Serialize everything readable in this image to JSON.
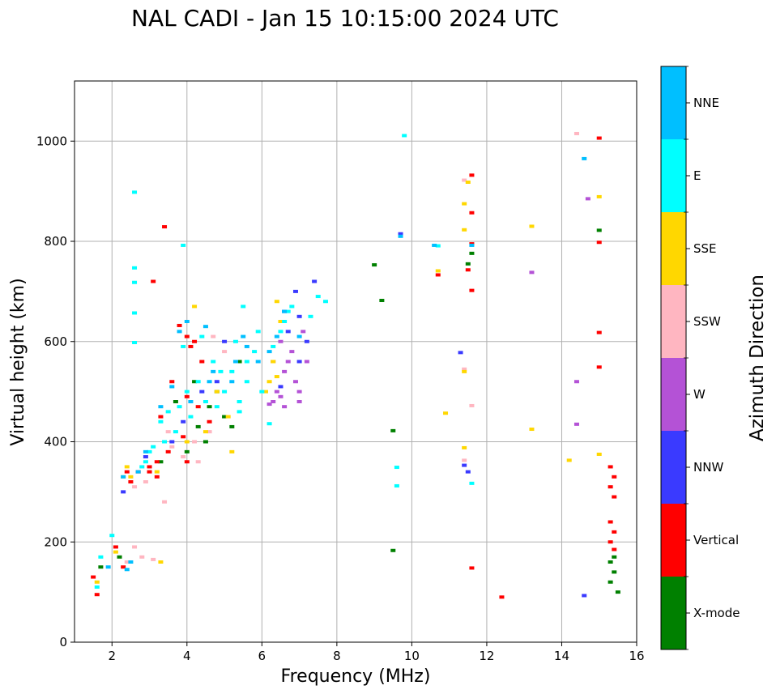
{
  "chart_data": {
    "type": "scatter",
    "title": "NAL CADI - Jan 15 10:15:00 2024 UTC",
    "xlabel": "Frequency (MHz)",
    "ylabel": "Virtual height (km)",
    "xlim": [
      1,
      16
    ],
    "ylim": [
      0,
      1120
    ],
    "xticks": [
      2,
      4,
      6,
      8,
      10,
      12,
      14,
      16
    ],
    "yticks": [
      0,
      200,
      400,
      600,
      800,
      1000
    ],
    "grid": true,
    "colorbar": {
      "label": "Azimuth Direction",
      "categories": [
        {
          "name": "X-mode",
          "color": "#008000"
        },
        {
          "name": "Vertical",
          "color": "#ff0000"
        },
        {
          "name": "NNW",
          "color": "#3a3aff"
        },
        {
          "name": "W",
          "color": "#b452d6"
        },
        {
          "name": "SSW",
          "color": "#ffb6c1"
        },
        {
          "name": "SSE",
          "color": "#ffd700"
        },
        {
          "name": "E",
          "color": "#00ffff"
        },
        {
          "name": "NNE",
          "color": "#00bfff"
        }
      ]
    },
    "series": [
      {
        "name": "X-mode",
        "points": [
          [
            15.3,
            160
          ],
          [
            15.4,
            140
          ],
          [
            15.3,
            120
          ],
          [
            15.5,
            100
          ],
          [
            15.4,
            170
          ],
          [
            15.0,
            822
          ],
          [
            11.6,
            776
          ],
          [
            9.5,
            422
          ],
          [
            9.5,
            183
          ],
          [
            9.2,
            682
          ],
          [
            9.0,
            753
          ],
          [
            4.0,
            380
          ],
          [
            4.3,
            430
          ],
          [
            4.5,
            400
          ],
          [
            4.8,
            500
          ],
          [
            5.2,
            430
          ],
          [
            5.4,
            560
          ],
          [
            3.7,
            480
          ],
          [
            4.6,
            470
          ],
          [
            2.2,
            170
          ],
          [
            1.7,
            150
          ],
          [
            4.2,
            520
          ],
          [
            5.0,
            450
          ],
          [
            11.5,
            755
          ],
          [
            3.3,
            360
          ]
        ]
      },
      {
        "name": "Vertical",
        "points": [
          [
            15.3,
            350
          ],
          [
            15.4,
            330
          ],
          [
            15.3,
            310
          ],
          [
            15.4,
            290
          ],
          [
            15.3,
            240
          ],
          [
            15.4,
            220
          ],
          [
            15.3,
            200
          ],
          [
            15.4,
            185
          ],
          [
            15.0,
            1006
          ],
          [
            15.0,
            798
          ],
          [
            15.0,
            618
          ],
          [
            15.0,
            549
          ],
          [
            12.4,
            90
          ],
          [
            11.6,
            932
          ],
          [
            11.6,
            857
          ],
          [
            11.6,
            795
          ],
          [
            11.6,
            702
          ],
          [
            11.5,
            743
          ],
          [
            11.6,
            148
          ],
          [
            10.7,
            733
          ],
          [
            3.4,
            829
          ],
          [
            3.1,
            720
          ],
          [
            3.0,
            340
          ],
          [
            3.2,
            360
          ],
          [
            2.7,
            340
          ],
          [
            3.5,
            380
          ],
          [
            4.0,
            360
          ],
          [
            4.2,
            600
          ],
          [
            4.0,
            610
          ],
          [
            3.8,
            632
          ],
          [
            4.4,
            560
          ],
          [
            4.0,
            490
          ],
          [
            4.3,
            470
          ],
          [
            3.6,
            520
          ],
          [
            3.3,
            450
          ],
          [
            3.9,
            410
          ],
          [
            4.6,
            440
          ],
          [
            2.5,
            320
          ],
          [
            2.4,
            340
          ],
          [
            2.1,
            190
          ],
          [
            2.3,
            150
          ],
          [
            1.5,
            130
          ],
          [
            1.6,
            95
          ],
          [
            3.0,
            350
          ],
          [
            3.2,
            330
          ],
          [
            4.1,
            590
          ]
        ]
      },
      {
        "name": "NNW",
        "points": [
          [
            14.6,
            93
          ],
          [
            11.4,
            353
          ],
          [
            11.5,
            340
          ],
          [
            11.3,
            578
          ],
          [
            9.7,
            815
          ],
          [
            6.7,
            620
          ],
          [
            7.0,
            560
          ],
          [
            6.6,
            660
          ],
          [
            6.9,
            700
          ],
          [
            7.2,
            600
          ],
          [
            6.5,
            510
          ],
          [
            5.0,
            600
          ],
          [
            4.8,
            520
          ],
          [
            4.4,
            500
          ],
          [
            3.9,
            440
          ],
          [
            3.6,
            400
          ],
          [
            2.9,
            370
          ],
          [
            2.3,
            300
          ],
          [
            7.4,
            720
          ],
          [
            7.0,
            650
          ]
        ]
      },
      {
        "name": "W",
        "points": [
          [
            14.7,
            885
          ],
          [
            14.4,
            520
          ],
          [
            14.4,
            435
          ],
          [
            13.2,
            738
          ],
          [
            6.3,
            480
          ],
          [
            6.5,
            490
          ],
          [
            6.7,
            560
          ],
          [
            6.9,
            520
          ],
          [
            7.0,
            500
          ],
          [
            6.8,
            580
          ],
          [
            6.5,
            600
          ],
          [
            6.3,
            560
          ],
          [
            6.6,
            540
          ],
          [
            7.1,
            620
          ],
          [
            6.2,
            475
          ],
          [
            6.4,
            500
          ],
          [
            6.6,
            470
          ],
          [
            7.0,
            480
          ],
          [
            7.2,
            560
          ]
        ]
      },
      {
        "name": "SSW",
        "points": [
          [
            14.4,
            1015
          ],
          [
            11.6,
            472
          ],
          [
            11.4,
            545
          ],
          [
            11.4,
            363
          ],
          [
            11.4,
            922
          ],
          [
            3.4,
            280
          ],
          [
            2.6,
            190
          ],
          [
            2.8,
            170
          ],
          [
            3.1,
            165
          ],
          [
            3.9,
            370
          ],
          [
            4.3,
            360
          ],
          [
            4.2,
            400
          ],
          [
            4.6,
            420
          ],
          [
            3.6,
            390
          ],
          [
            2.6,
            310
          ],
          [
            2.9,
            320
          ],
          [
            5.0,
            580
          ],
          [
            4.7,
            610
          ],
          [
            3.5,
            420
          ],
          [
            2.4,
            160
          ]
        ]
      },
      {
        "name": "SSE",
        "points": [
          [
            15.0,
            889
          ],
          [
            15.0,
            375
          ],
          [
            14.2,
            363
          ],
          [
            13.2,
            830
          ],
          [
            13.2,
            425
          ],
          [
            11.4,
            875
          ],
          [
            11.4,
            823
          ],
          [
            11.4,
            540
          ],
          [
            11.4,
            388
          ],
          [
            11.5,
            918
          ],
          [
            10.9,
            457
          ],
          [
            10.7,
            741
          ],
          [
            6.4,
            680
          ],
          [
            6.4,
            530
          ],
          [
            6.3,
            560
          ],
          [
            6.2,
            520
          ],
          [
            5.2,
            380
          ],
          [
            3.3,
            160
          ],
          [
            2.4,
            350
          ],
          [
            2.5,
            330
          ],
          [
            4.0,
            400
          ],
          [
            4.5,
            420
          ],
          [
            4.2,
            670
          ],
          [
            1.6,
            120
          ],
          [
            2.1,
            180
          ],
          [
            2.3,
            330
          ],
          [
            3.2,
            340
          ],
          [
            5.1,
            450
          ],
          [
            4.8,
            500
          ],
          [
            6.5,
            640
          ],
          [
            6.1,
            500
          ]
        ]
      },
      {
        "name": "E",
        "points": [
          [
            9.6,
            312
          ],
          [
            9.6,
            349
          ],
          [
            9.8,
            1011
          ],
          [
            10.7,
            791
          ],
          [
            11.6,
            317
          ],
          [
            2.6,
            898
          ],
          [
            2.6,
            747
          ],
          [
            2.6,
            718
          ],
          [
            2.6,
            657
          ],
          [
            2.6,
            598
          ],
          [
            3.9,
            792
          ],
          [
            2.0,
            213
          ],
          [
            1.7,
            170
          ],
          [
            1.6,
            110
          ],
          [
            2.8,
            350
          ],
          [
            3.0,
            380
          ],
          [
            3.3,
            440
          ],
          [
            3.5,
            460
          ],
          [
            3.8,
            470
          ],
          [
            4.0,
            500
          ],
          [
            4.3,
            520
          ],
          [
            4.5,
            480
          ],
          [
            4.8,
            470
          ],
          [
            5.0,
            500
          ],
          [
            5.2,
            540
          ],
          [
            5.4,
            480
          ],
          [
            5.4,
            460
          ],
          [
            5.6,
            520
          ],
          [
            5.6,
            560
          ],
          [
            5.8,
            580
          ],
          [
            6.0,
            500
          ],
          [
            6.3,
            590
          ],
          [
            6.5,
            620
          ],
          [
            6.6,
            640
          ],
          [
            6.7,
            660
          ],
          [
            6.8,
            670
          ],
          [
            5.5,
            670
          ],
          [
            5.3,
            600
          ],
          [
            4.9,
            540
          ],
          [
            4.7,
            560
          ],
          [
            4.1,
            450
          ],
          [
            3.7,
            420
          ],
          [
            3.4,
            400
          ],
          [
            3.1,
            390
          ],
          [
            2.9,
            360
          ],
          [
            5.9,
            620
          ],
          [
            6.2,
            436
          ],
          [
            7.5,
            690
          ],
          [
            7.7,
            680
          ],
          [
            7.3,
            650
          ],
          [
            3.9,
            590
          ],
          [
            4.4,
            610
          ]
        ]
      },
      {
        "name": "NNE",
        "points": [
          [
            14.6,
            965
          ],
          [
            11.6,
            792
          ],
          [
            10.6,
            792
          ],
          [
            9.7,
            810
          ],
          [
            4.0,
            640
          ],
          [
            4.5,
            630
          ],
          [
            5.5,
            610
          ],
          [
            3.8,
            620
          ],
          [
            2.5,
            160
          ],
          [
            2.4,
            145
          ],
          [
            1.9,
            150
          ],
          [
            5.6,
            590
          ],
          [
            4.7,
            540
          ],
          [
            5.2,
            520
          ],
          [
            6.6,
            660
          ],
          [
            7.0,
            610
          ],
          [
            3.6,
            510
          ],
          [
            3.3,
            470
          ],
          [
            2.9,
            380
          ],
          [
            2.7,
            340
          ],
          [
            2.3,
            330
          ],
          [
            6.4,
            610
          ],
          [
            6.2,
            580
          ],
          [
            5.9,
            560
          ],
          [
            4.1,
            480
          ],
          [
            4.6,
            520
          ],
          [
            5.3,
            560
          ]
        ]
      }
    ]
  }
}
